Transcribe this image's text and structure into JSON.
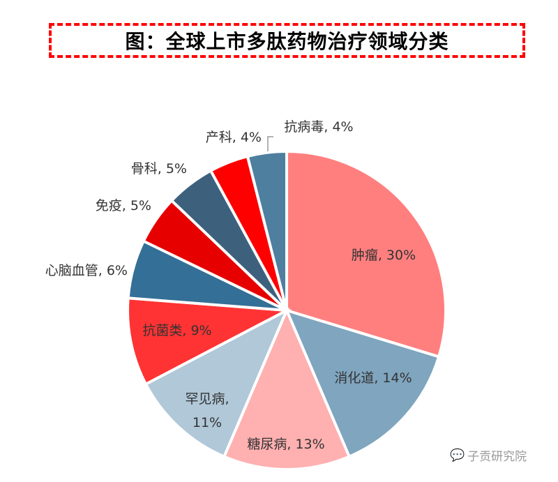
{
  "title": "图：全球上市多肽药物治疗领域分类",
  "watermark": "子贡研究院",
  "chart_data": {
    "type": "pie",
    "title": "图：全球上市多肽药物治疗领域分类",
    "categories": [
      "肿瘤",
      "消化道",
      "糖尿病",
      "罕见病",
      "抗菌类",
      "心脑血管",
      "免疫",
      "骨科",
      "产科",
      "抗病毒"
    ],
    "values": [
      30,
      14,
      13,
      11,
      9,
      6,
      5,
      5,
      4,
      4
    ],
    "unit": "%",
    "colors": [
      "#ff7f7f",
      "#7fa5bf",
      "#ffb0b0",
      "#b0c8d8",
      "#ff3333",
      "#336f96",
      "#e60000",
      "#3d617d",
      "#ff0000",
      "#4f7f9f"
    ],
    "labels": [
      "肿瘤, 30%",
      "消化道, 14%",
      "糖尿病, 13%",
      "罕见病, 11%",
      "抗菌类, 9%",
      "心脑血管, 6%",
      "免疫, 5%",
      "骨科, 5%",
      "产科, 4%",
      "抗病毒, 4%"
    ],
    "legend": "none",
    "start_angle": "12 o'clock, clockwise"
  }
}
